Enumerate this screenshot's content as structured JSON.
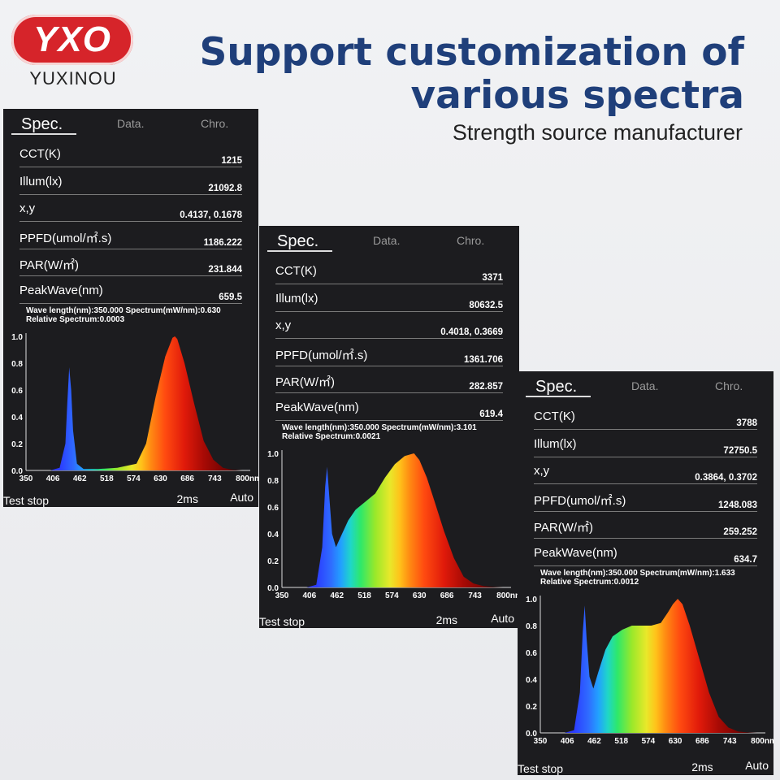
{
  "brand": {
    "logo_text": "YXO",
    "name": "YUXINOU",
    "logo_color": "#d6242a"
  },
  "headline": {
    "line1": "Support customization of",
    "line2": "various spectra",
    "subtitle": "Strength source manufacturer",
    "color": "#1f3f7a"
  },
  "devices": [
    {
      "tabs": [
        "Spec.",
        "Data.",
        "Chro."
      ],
      "rows": [
        {
          "label": "CCT(K)",
          "value": "1215"
        },
        {
          "label": "Illum(lx)",
          "value": "21092.8"
        },
        {
          "label": "x,y",
          "value": "0.4137, 0.1678"
        },
        {
          "label": "PPFD(umol/㎡.s)",
          "value": "1186.222"
        },
        {
          "label": "PAR(W/㎡)",
          "value": "231.844"
        },
        {
          "label": "PeakWave(nm)",
          "value": "659.5"
        }
      ],
      "info_line1": "Wave length(nm):350.000  Spectrum(mW/nm):0.630",
      "info_line2": "Relative Spectrum:0.0003",
      "y_ticks": [
        "1.0",
        "0.8",
        "0.6",
        "0.4",
        "0.2",
        "0.0"
      ],
      "x_ticks": [
        "350",
        "406",
        "462",
        "518",
        "574",
        "630",
        "686",
        "743",
        "800nm"
      ],
      "footer": {
        "left": "Test stop",
        "middle": "2ms",
        "right": "Auto"
      }
    },
    {
      "tabs": [
        "Spec.",
        "Data.",
        "Chro."
      ],
      "rows": [
        {
          "label": "CCT(K)",
          "value": "3371"
        },
        {
          "label": "Illum(lx)",
          "value": "80632.5"
        },
        {
          "label": "x,y",
          "value": "0.4018, 0.3669"
        },
        {
          "label": "PPFD(umol/㎡.s)",
          "value": "1361.706"
        },
        {
          "label": "PAR(W/㎡)",
          "value": "282.857"
        },
        {
          "label": "PeakWave(nm)",
          "value": "619.4"
        }
      ],
      "info_line1": "Wave length(nm):350.000  Spectrum(mW/nm):3.101",
      "info_line2": "Relative Spectrum:0.0021",
      "y_ticks": [
        "1.0",
        "0.8",
        "0.6",
        "0.4",
        "0.2",
        "0.0"
      ],
      "x_ticks": [
        "350",
        "406",
        "462",
        "518",
        "574",
        "630",
        "686",
        "743",
        "800nm"
      ],
      "footer": {
        "left": "Test stop",
        "middle": "2ms",
        "right": "Auto"
      }
    },
    {
      "tabs": [
        "Spec.",
        "Data.",
        "Chro."
      ],
      "rows": [
        {
          "label": "CCT(K)",
          "value": "3788"
        },
        {
          "label": "Illum(lx)",
          "value": "72750.5"
        },
        {
          "label": "x,y",
          "value": "0.3864, 0.3702"
        },
        {
          "label": "PPFD(umol/㎡.s)",
          "value": "1248.083"
        },
        {
          "label": "PAR(W/㎡)",
          "value": "259.252"
        },
        {
          "label": "PeakWave(nm)",
          "value": "634.7"
        }
      ],
      "info_line1": "Wave length(nm):350.000  Spectrum(mW/nm):1.633",
      "info_line2": "Relative Spectrum:0.0012",
      "y_ticks": [
        "1.0",
        "0.8",
        "0.6",
        "0.4",
        "0.2",
        "0.0"
      ],
      "x_ticks": [
        "350",
        "406",
        "462",
        "518",
        "574",
        "630",
        "686",
        "743",
        "800nm"
      ],
      "footer": {
        "left": "Test stop",
        "middle": "2ms",
        "right": "Auto"
      }
    }
  ],
  "chart_data": [
    {
      "type": "area",
      "x_range": [
        350,
        800
      ],
      "ylim": [
        0,
        1.0
      ],
      "x": [
        350,
        400,
        420,
        432,
        436,
        440,
        444,
        448,
        456,
        470,
        500,
        540,
        580,
        600,
        620,
        640,
        655,
        660,
        665,
        680,
        700,
        720,
        740,
        760,
        780,
        800
      ],
      "y": [
        0,
        0,
        0.02,
        0.2,
        0.5,
        0.77,
        0.6,
        0.3,
        0.05,
        0.01,
        0.01,
        0.02,
        0.05,
        0.2,
        0.55,
        0.85,
        0.99,
        1.0,
        0.98,
        0.8,
        0.5,
        0.22,
        0.08,
        0.02,
        0.005,
        0
      ]
    },
    {
      "type": "area",
      "x_range": [
        350,
        800
      ],
      "ylim": [
        0,
        1.0
      ],
      "x": [
        350,
        400,
        420,
        432,
        438,
        442,
        446,
        452,
        460,
        470,
        485,
        500,
        520,
        540,
        560,
        580,
        600,
        619,
        630,
        645,
        660,
        680,
        700,
        720,
        740,
        760,
        780,
        800
      ],
      "y": [
        0,
        0,
        0.02,
        0.3,
        0.75,
        0.9,
        0.7,
        0.4,
        0.3,
        0.38,
        0.5,
        0.58,
        0.64,
        0.7,
        0.82,
        0.92,
        0.98,
        1.0,
        0.95,
        0.82,
        0.65,
        0.42,
        0.22,
        0.08,
        0.03,
        0.01,
        0.003,
        0
      ]
    },
    {
      "type": "area",
      "x_range": [
        350,
        800
      ],
      "ylim": [
        0,
        1.0
      ],
      "x": [
        350,
        400,
        420,
        432,
        438,
        442,
        446,
        452,
        460,
        470,
        485,
        500,
        520,
        540,
        560,
        580,
        600,
        615,
        625,
        635,
        645,
        660,
        680,
        700,
        720,
        740,
        760,
        780,
        800
      ],
      "y": [
        0,
        0,
        0.02,
        0.3,
        0.75,
        0.95,
        0.7,
        0.42,
        0.33,
        0.45,
        0.62,
        0.72,
        0.77,
        0.8,
        0.8,
        0.8,
        0.82,
        0.9,
        0.96,
        1.0,
        0.96,
        0.8,
        0.55,
        0.3,
        0.12,
        0.04,
        0.01,
        0.003,
        0
      ]
    }
  ]
}
